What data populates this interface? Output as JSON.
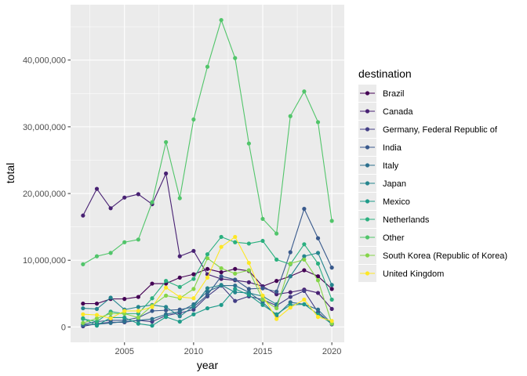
{
  "chart_data": {
    "type": "line",
    "xlabel": "year",
    "ylabel": "total",
    "xlim": [
      2001.1,
      2020.9
    ],
    "ylim": [
      -2300000,
      48300000
    ],
    "x_ticks": [
      2005,
      2010,
      2015,
      2020
    ],
    "x_tick_labels": [
      "2005",
      "2010",
      "2015",
      "2020"
    ],
    "y_ticks": [
      0,
      10000000,
      20000000,
      30000000,
      40000000
    ],
    "y_tick_labels": [
      "0",
      "10,000,000",
      "20,000,000",
      "30,000,000",
      "40,000,000"
    ],
    "grid": true,
    "legend": {
      "title": "destination",
      "position": "right"
    },
    "x": [
      2002,
      2003,
      2004,
      2005,
      2006,
      2007,
      2008,
      2009,
      2010,
      2011,
      2012,
      2013,
      2014,
      2015,
      2016,
      2017,
      2018,
      2019,
      2020
    ],
    "series": [
      {
        "name": "Brazil",
        "color": "#440154",
        "values": [
          3500000,
          3500000,
          4200000,
          4200000,
          4500000,
          6500000,
          6500000,
          7400000,
          7900000,
          8700000,
          8200000,
          8700000,
          8400000,
          6100000,
          6900000,
          7600000,
          8500000,
          7600000,
          5700000
        ]
      },
      {
        "name": "Canada",
        "color": "#482173",
        "values": [
          16700000,
          20700000,
          17800000,
          19400000,
          19900000,
          18400000,
          23000000,
          10600000,
          11400000,
          7900000,
          7200000,
          7000000,
          6700000,
          6100000,
          4900000,
          5200000,
          5600000,
          5100000,
          2700000
        ]
      },
      {
        "name": "Germany, Federal Republic of",
        "color": "#433E85",
        "values": [
          100000,
          500000,
          700000,
          700000,
          1000000,
          800000,
          1700000,
          2100000,
          2600000,
          4600000,
          6200000,
          3900000,
          4600000,
          4100000,
          3200000,
          4500000,
          5400000,
          2200000,
          400000
        ]
      },
      {
        "name": "India",
        "color": "#38598C",
        "values": [
          400000,
          800000,
          1000000,
          1000000,
          1400000,
          2400000,
          2500000,
          2600000,
          3000000,
          4800000,
          7600000,
          7100000,
          5700000,
          5800000,
          5300000,
          11200000,
          17700000,
          13300000,
          8900000
        ]
      },
      {
        "name": "Italy",
        "color": "#2D708E",
        "values": [
          300000,
          400000,
          600000,
          800000,
          1000000,
          1200000,
          1900000,
          2300000,
          3400000,
          5300000,
          6200000,
          6200000,
          5200000,
          3700000,
          1700000,
          3700000,
          3400000,
          2600000,
          500000
        ]
      },
      {
        "name": "Japan",
        "color": "#25858E",
        "values": [
          2800000,
          2700000,
          4400000,
          2600000,
          3000000,
          3300000,
          3000000,
          1600000,
          3100000,
          5800000,
          6300000,
          5200000,
          5100000,
          4600000,
          3400000,
          7600000,
          10600000,
          11100000,
          6300000
        ]
      },
      {
        "name": "Mexico",
        "color": "#1E9B8A",
        "values": [
          1300000,
          200000,
          1400000,
          1400000,
          500000,
          200000,
          1500000,
          800000,
          1900000,
          2800000,
          3300000,
          5700000,
          4800000,
          3300000,
          1900000,
          3300000,
          3400000,
          1900000,
          500000
        ]
      },
      {
        "name": "Netherlands",
        "color": "#2BB07F",
        "values": [
          1200000,
          800000,
          2300000,
          2000000,
          2000000,
          4300000,
          6900000,
          6000000,
          7200000,
          10900000,
          13500000,
          12700000,
          12500000,
          12900000,
          10100000,
          9400000,
          12400000,
          9500000,
          4100000
        ]
      },
      {
        "name": "Other",
        "color": "#51C56A",
        "values": [
          9400000,
          10600000,
          11100000,
          12700000,
          13100000,
          18700000,
          27700000,
          19300000,
          31100000,
          39000000,
          46000000,
          40300000,
          27500000,
          16200000,
          14000000,
          31600000,
          35300000,
          30700000,
          15900000
        ]
      },
      {
        "name": "South Korea (Republic of Korea)",
        "color": "#85D54A",
        "values": [
          600000,
          1300000,
          2000000,
          2000000,
          1400000,
          3200000,
          4700000,
          4300000,
          5700000,
          10300000,
          8800000,
          8000000,
          8500000,
          4100000,
          2800000,
          9500000,
          10100000,
          7000000,
          500000
        ]
      },
      {
        "name": "United Kingdom",
        "color": "#FDE725",
        "values": [
          1900000,
          1800000,
          1300000,
          2400000,
          2400000,
          3000000,
          5900000,
          4500000,
          4300000,
          7400000,
          12000000,
          13500000,
          9600000,
          4700000,
          1200000,
          2900000,
          4100000,
          1500000,
          900000
        ]
      }
    ]
  }
}
